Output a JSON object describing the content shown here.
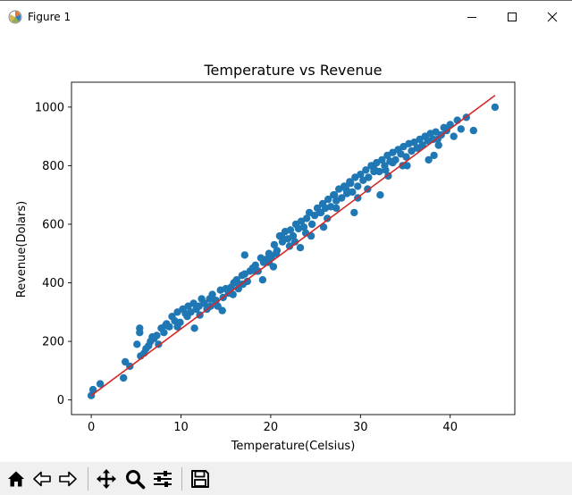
{
  "window": {
    "title": "Figure 1"
  },
  "toolbar": {
    "buttons": [
      {
        "name": "home",
        "icon": "home-icon"
      },
      {
        "name": "back",
        "icon": "back-arrow-icon"
      },
      {
        "name": "forward",
        "icon": "forward-arrow-icon"
      },
      {
        "name": "pan",
        "icon": "move-icon"
      },
      {
        "name": "zoom",
        "icon": "magnifier-icon"
      },
      {
        "name": "configure",
        "icon": "sliders-icon"
      },
      {
        "name": "save",
        "icon": "floppy-disk-icon"
      }
    ]
  },
  "colors": {
    "points": "#1f77b4",
    "fit_line": "#d62728"
  },
  "chart_data": {
    "type": "scatter",
    "title": "Temperature vs Revenue",
    "xlabel": "Temperature(Celsius)",
    "ylabel": "Revenue(Dolars)",
    "xlim": [
      -2.2,
      47.2
    ],
    "ylim": [
      -50,
      1085
    ],
    "xticks": [
      0,
      10,
      20,
      30,
      40
    ],
    "yticks": [
      0,
      200,
      400,
      600,
      800,
      1000
    ],
    "grid": false,
    "legend": "none",
    "fit_line": {
      "x": [
        0,
        45
      ],
      "y": [
        15,
        1040
      ]
    },
    "points": {
      "x": [
        0,
        0.2,
        1.0,
        3.6,
        3.8,
        4.3,
        5.1,
        5.4,
        5.5,
        5.9,
        6.1,
        6.4,
        6.6,
        7.0,
        7.3,
        7.5,
        7.8,
        8.1,
        8.4,
        8.7,
        9.0,
        9.3,
        9.6,
        9.9,
        10.2,
        10.5,
        10.8,
        11.1,
        11.4,
        11.7,
        12.0,
        12.3,
        12.6,
        12.9,
        13.2,
        13.5,
        13.8,
        14.1,
        14.4,
        14.7,
        15.0,
        15.3,
        15.6,
        15.9,
        16.2,
        16.5,
        16.8,
        17.1,
        17.4,
        17.7,
        18.0,
        18.3,
        18.6,
        18.9,
        19.2,
        19.5,
        19.8,
        20.1,
        20.4,
        20.7,
        21.0,
        21.3,
        21.6,
        21.9,
        22.2,
        22.5,
        22.8,
        23.1,
        23.4,
        23.7,
        24.0,
        24.3,
        24.6,
        24.9,
        25.2,
        25.5,
        25.8,
        26.1,
        26.4,
        26.7,
        27.0,
        27.3,
        27.6,
        27.9,
        28.2,
        28.5,
        28.8,
        29.1,
        29.4,
        29.7,
        30.0,
        30.3,
        30.6,
        30.9,
        31.2,
        31.5,
        31.8,
        32.1,
        32.4,
        32.7,
        33.0,
        33.3,
        33.6,
        33.9,
        34.2,
        34.5,
        34.8,
        35.1,
        35.4,
        35.7,
        36.0,
        36.3,
        36.6,
        36.9,
        37.2,
        37.5,
        37.8,
        38.1,
        38.4,
        38.7,
        39.0,
        39.3,
        39.6,
        40.0,
        40.4,
        40.8,
        41.2,
        41.8,
        42.6,
        45.0,
        11.5,
        15.8,
        17.1,
        19.8,
        21.2,
        22.7,
        23.9,
        25.6,
        27.3,
        28.4,
        29.7,
        32.2,
        33.6,
        34.7,
        36.4,
        38.2,
        5.4,
        6.8,
        8.3,
        9.6,
        12.1,
        13.3,
        14.6,
        16.4,
        18.3,
        19.1,
        20.6,
        22.1,
        24.5,
        26.3,
        27.1,
        28.9,
        30.8,
        31.5,
        33.1,
        35.2,
        37.6,
        38.6,
        10.7,
        13.9,
        16.9,
        20.3,
        23.3,
        25.9,
        29.3,
        32.8
      ],
      "y": [
        15,
        35,
        55,
        75,
        130,
        115,
        190,
        245,
        150,
        160,
        175,
        185,
        200,
        210,
        220,
        190,
        245,
        230,
        260,
        250,
        285,
        270,
        300,
        265,
        310,
        295,
        320,
        300,
        330,
        310,
        320,
        345,
        330,
        310,
        345,
        360,
        340,
        320,
        375,
        350,
        380,
        365,
        385,
        400,
        410,
        395,
        425,
        430,
        405,
        440,
        450,
        460,
        440,
        485,
        470,
        480,
        500,
        490,
        530,
        510,
        560,
        540,
        575,
        550,
        580,
        560,
        600,
        585,
        610,
        590,
        620,
        640,
        600,
        630,
        655,
        640,
        670,
        655,
        685,
        660,
        700,
        680,
        720,
        690,
        730,
        705,
        745,
        710,
        760,
        730,
        770,
        750,
        785,
        760,
        800,
        790,
        810,
        780,
        820,
        800,
        835,
        815,
        845,
        820,
        855,
        840,
        865,
        830,
        875,
        850,
        880,
        860,
        890,
        870,
        900,
        885,
        910,
        890,
        915,
        870,
        905,
        930,
        920,
        940,
        900,
        955,
        925,
        965,
        920,
        1000,
        245,
        360,
        495,
        470,
        560,
        540,
        570,
        640,
        655,
        720,
        690,
        700,
        810,
        800,
        860,
        835,
        230,
        215,
        255,
        250,
        290,
        320,
        305,
        380,
        440,
        410,
        500,
        525,
        560,
        620,
        700,
        740,
        720,
        780,
        765,
        800,
        820,
        890,
        285,
        340,
        395,
        455,
        520,
        590,
        640,
        785
      ]
    }
  }
}
